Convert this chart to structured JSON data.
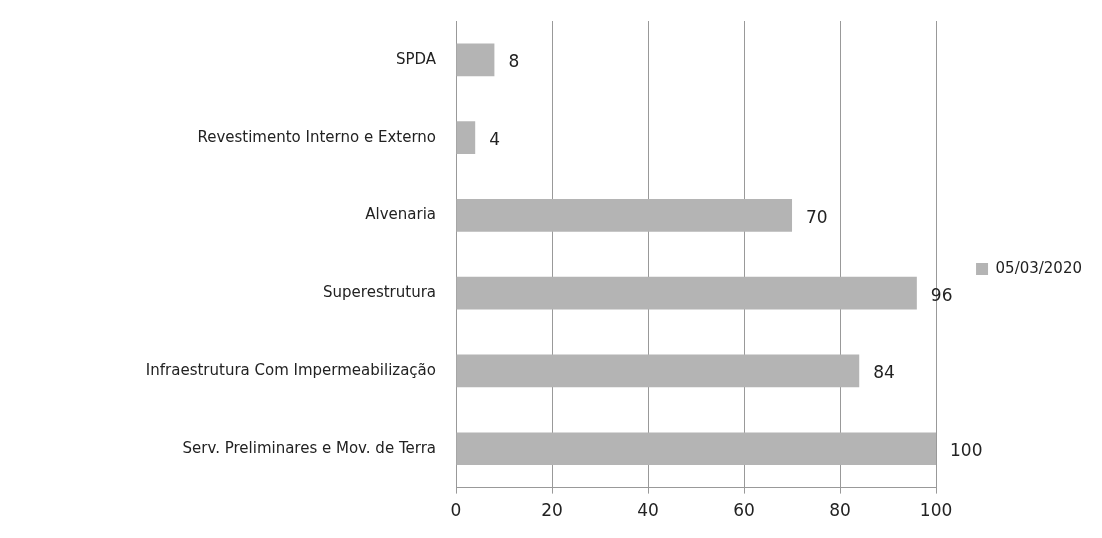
{
  "chart_data": {
    "type": "bar",
    "orientation": "horizontal",
    "categories": [
      "SPDA",
      "Revestimento Interno e Externo",
      "Alvenaria",
      "Superestrutura",
      "Infraestrutura Com Impermeabilização",
      "Serv. Preliminares e Mov. de Terra"
    ],
    "series": [
      {
        "name": "05/03/2020",
        "color": "#b4b4b4",
        "values": [
          8,
          4,
          70,
          96,
          84,
          100
        ]
      }
    ],
    "xlim": [
      0,
      100
    ],
    "xticks": [
      0,
      20,
      40,
      60,
      80,
      100
    ],
    "grid": "x",
    "legend": "right",
    "data_labels": true
  }
}
